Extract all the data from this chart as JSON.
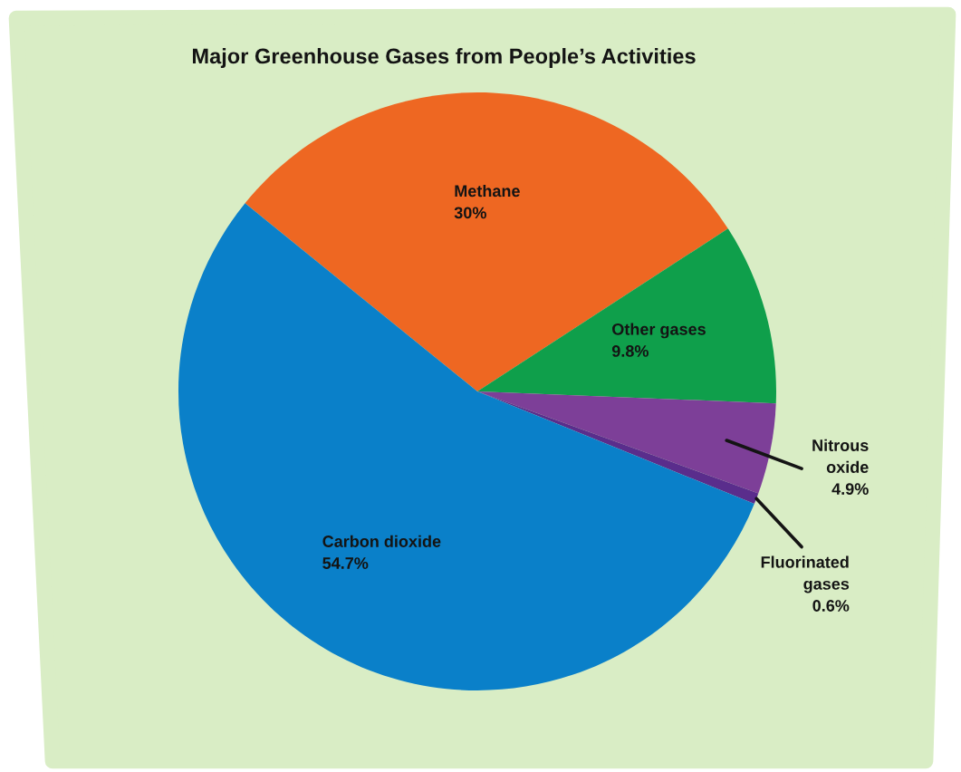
{
  "chart_data": {
    "type": "pie",
    "title": "Major Greenhouse Gases from People’s Activities",
    "categories": [
      "Methane",
      "Other gases",
      "Nitrous oxide",
      "Fluorinated gases",
      "Carbon dioxide"
    ],
    "values": [
      30,
      9.8,
      4.9,
      0.6,
      54.7
    ],
    "value_labels": [
      "30%",
      "9.8%",
      "4.9%",
      "0.6%",
      "54.7%"
    ],
    "colors": [
      "#ee6722",
      "#0f9f4b",
      "#7d3f98",
      "#5a2d8c",
      "#0a80c9"
    ]
  }
}
